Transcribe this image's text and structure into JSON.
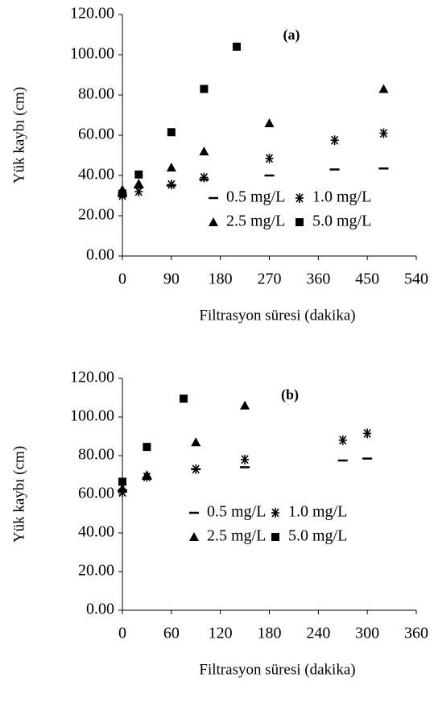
{
  "chart_data": [
    {
      "type": "scatter",
      "annotation": "(a)",
      "x_label": "Filtrasyon süresi (dakika)",
      "y_label": "Yük kaybı (cm)",
      "xlim": [
        0,
        540
      ],
      "xticks": [
        0,
        90,
        180,
        270,
        360,
        450,
        540
      ],
      "ylim": [
        0,
        120
      ],
      "yticks": [
        {
          "value": 0,
          "label": "0.00"
        },
        {
          "value": 20,
          "label": "20.00"
        },
        {
          "value": 40,
          "label": "40.00"
        },
        {
          "value": 60,
          "label": "60.00"
        },
        {
          "value": 80,
          "label": "80.00"
        },
        {
          "value": 100,
          "label": "100.00"
        },
        {
          "value": 120,
          "label": "120.00"
        }
      ],
      "grid": false,
      "series": [
        {
          "name": "0.5 mg/L",
          "marker": "dash",
          "color": "#000000",
          "x": [
            0,
            30,
            90,
            150,
            270,
            390,
            480
          ],
          "values": [
            30,
            34,
            35,
            38,
            40,
            43,
            43.5
          ]
        },
        {
          "name": "1.0 mg/L",
          "marker": "star",
          "color": "#000000",
          "x": [
            0,
            30,
            90,
            150,
            270,
            390,
            480
          ],
          "values": [
            30,
            32,
            35.5,
            39,
            48.5,
            57.5,
            61
          ]
        },
        {
          "name": "2.5 mg/L",
          "marker": "triangle",
          "color": "#000000",
          "x": [
            0,
            30,
            90,
            150,
            270,
            480
          ],
          "values": [
            33,
            36,
            44,
            52,
            66,
            83
          ]
        },
        {
          "name": "5.0 mg/L",
          "marker": "square",
          "color": "#000000",
          "x": [
            0,
            30,
            90,
            150,
            210
          ],
          "values": [
            31,
            40.5,
            61.5,
            83,
            104
          ]
        }
      ]
    },
    {
      "type": "scatter",
      "annotation": "(b)",
      "x_label": "Filtrasyon süresi (dakika)",
      "y_label": "Yük kaybı (cm)",
      "xlim": [
        0,
        360
      ],
      "xticks": [
        0,
        60,
        120,
        180,
        240,
        300,
        360
      ],
      "ylim": [
        0,
        120
      ],
      "yticks": [
        {
          "value": 0,
          "label": "0.00"
        },
        {
          "value": 20,
          "label": "20.00"
        },
        {
          "value": 40,
          "label": "40.00"
        },
        {
          "value": 60,
          "label": "60.00"
        },
        {
          "value": 80,
          "label": "80.00"
        },
        {
          "value": 100,
          "label": "100.00"
        },
        {
          "value": 120,
          "label": "120.00"
        }
      ],
      "grid": false,
      "series": [
        {
          "name": "0.5 mg/L",
          "marker": "dash",
          "color": "#000000",
          "x": [
            0,
            30,
            90,
            150,
            270,
            300
          ],
          "values": [
            62,
            68,
            73,
            74,
            77.5,
            78.5
          ]
        },
        {
          "name": "1.0 mg/L",
          "marker": "star",
          "color": "#000000",
          "x": [
            0,
            30,
            90,
            150,
            270,
            300
          ],
          "values": [
            61,
            69,
            73,
            78,
            88,
            91.5
          ]
        },
        {
          "name": "2.5 mg/L",
          "marker": "triangle",
          "color": "#000000",
          "x": [
            0,
            30,
            90,
            150
          ],
          "values": [
            63,
            70,
            87,
            106
          ]
        },
        {
          "name": "5.0 mg/L",
          "marker": "square",
          "color": "#000000",
          "x": [
            0,
            30,
            75
          ],
          "values": [
            66.5,
            84.5,
            109.5
          ]
        }
      ]
    }
  ]
}
